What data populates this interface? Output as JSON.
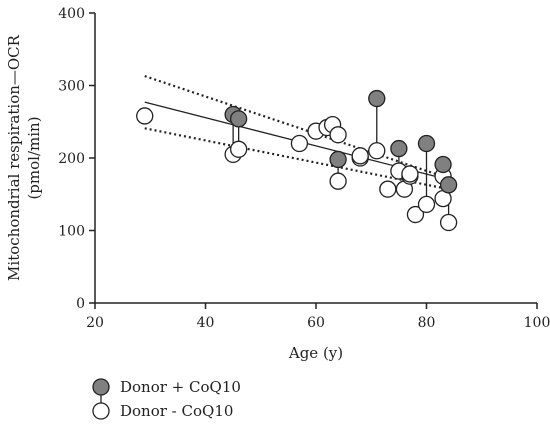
{
  "chart_data": {
    "type": "scatter",
    "xlabel": "Age (y)",
    "ylabel_line1": "Mitochondrial respiration—OCR",
    "ylabel_line2": "(pmol/min)",
    "xlim": [
      20,
      100
    ],
    "ylim": [
      0,
      400
    ],
    "x_ticks": [
      20,
      40,
      60,
      80,
      100
    ],
    "y_ticks": [
      0,
      100,
      200,
      300,
      400
    ],
    "grid": false,
    "legend_position": "bottom-left",
    "series": [
      {
        "name": "Donor + CoQ10",
        "color": "#808080",
        "points": [
          {
            "x": 45,
            "y": 260
          },
          {
            "x": 46,
            "y": 254
          },
          {
            "x": 64,
            "y": 198
          },
          {
            "x": 71,
            "y": 282
          },
          {
            "x": 75,
            "y": 213
          },
          {
            "x": 80,
            "y": 220
          },
          {
            "x": 83,
            "y": 191
          },
          {
            "x": 84,
            "y": 163
          }
        ]
      },
      {
        "name": "Donor - CoQ10",
        "color": "#ffffff",
        "points": [
          {
            "x": 29,
            "y": 258
          },
          {
            "x": 45,
            "y": 205
          },
          {
            "x": 46,
            "y": 212
          },
          {
            "x": 57,
            "y": 220
          },
          {
            "x": 60,
            "y": 237
          },
          {
            "x": 62,
            "y": 242
          },
          {
            "x": 63,
            "y": 246
          },
          {
            "x": 64,
            "y": 232
          },
          {
            "x": 64,
            "y": 168
          },
          {
            "x": 68,
            "y": 200
          },
          {
            "x": 68,
            "y": 203
          },
          {
            "x": 71,
            "y": 210
          },
          {
            "x": 73,
            "y": 157
          },
          {
            "x": 75,
            "y": 182
          },
          {
            "x": 76,
            "y": 157
          },
          {
            "x": 77,
            "y": 175
          },
          {
            "x": 77,
            "y": 178
          },
          {
            "x": 78,
            "y": 122
          },
          {
            "x": 80,
            "y": 136
          },
          {
            "x": 83,
            "y": 144
          },
          {
            "x": 83,
            "y": 175
          },
          {
            "x": 84,
            "y": 111
          }
        ]
      }
    ],
    "pairs": [
      {
        "x": 45,
        "y_plus": 260,
        "y_minus": 205
      },
      {
        "x": 46,
        "y_plus": 254,
        "y_minus": 212
      },
      {
        "x": 64,
        "y_plus": 198,
        "y_minus": 168
      },
      {
        "x": 71,
        "y_plus": 282,
        "y_minus": 210
      },
      {
        "x": 75,
        "y_plus": 213,
        "y_minus": 182
      },
      {
        "x": 80,
        "y_plus": 220,
        "y_minus": 136
      },
      {
        "x": 83,
        "y_plus": 191,
        "y_minus": 175
      },
      {
        "x": 84,
        "y_plus": 163,
        "y_minus": 111
      }
    ],
    "regression": {
      "x1": 29,
      "y1": 277,
      "x2": 84,
      "y2": 170
    },
    "confidence_band": {
      "upper": {
        "x1": 29,
        "y1": 313,
        "x2": 84,
        "y2": 172
      },
      "lower": {
        "x1": 29,
        "y1": 241,
        "x2": 84,
        "y2": 157
      }
    }
  }
}
